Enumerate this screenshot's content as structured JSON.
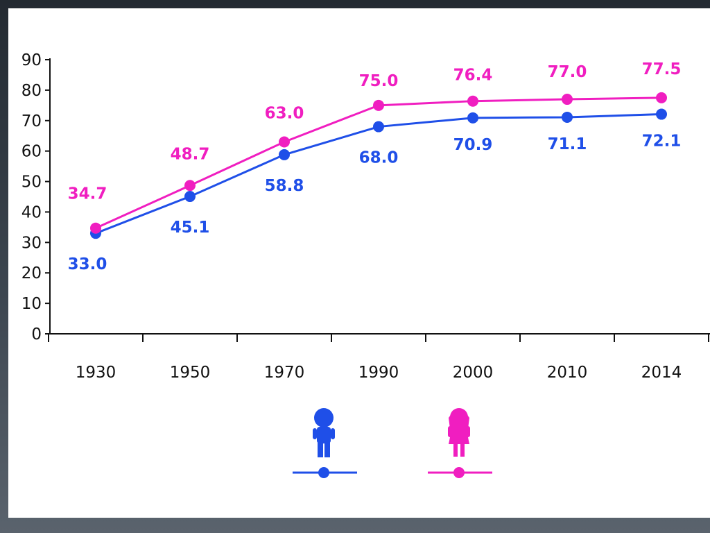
{
  "chart_data": {
    "type": "line",
    "categories": [
      "1930",
      "1950",
      "1970",
      "1990",
      "2000",
      "2010",
      "2014"
    ],
    "ylim": [
      0,
      90
    ],
    "yticks": [
      "0",
      "10",
      "20",
      "30",
      "40",
      "50",
      "60",
      "70",
      "80",
      "90"
    ],
    "grid": false,
    "legend_position": "bottom-center",
    "series": [
      {
        "color": "#1f4fe8",
        "icon": "boy-figure-icon",
        "values": [
          33.0,
          45.1,
          58.8,
          68.0,
          70.9,
          71.1,
          72.1
        ],
        "labels": [
          "33.0",
          "45.1",
          "58.8",
          "68.0",
          "70.9",
          "71.1",
          "72.1"
        ]
      },
      {
        "color": "#f01ec0",
        "icon": "girl-figure-icon",
        "values": [
          34.7,
          48.7,
          63.0,
          75.0,
          76.4,
          77.0,
          77.5
        ],
        "labels": [
          "34.7",
          "48.7",
          "63.0",
          "75.0",
          "76.4",
          "77.0",
          "77.5"
        ]
      }
    ]
  }
}
